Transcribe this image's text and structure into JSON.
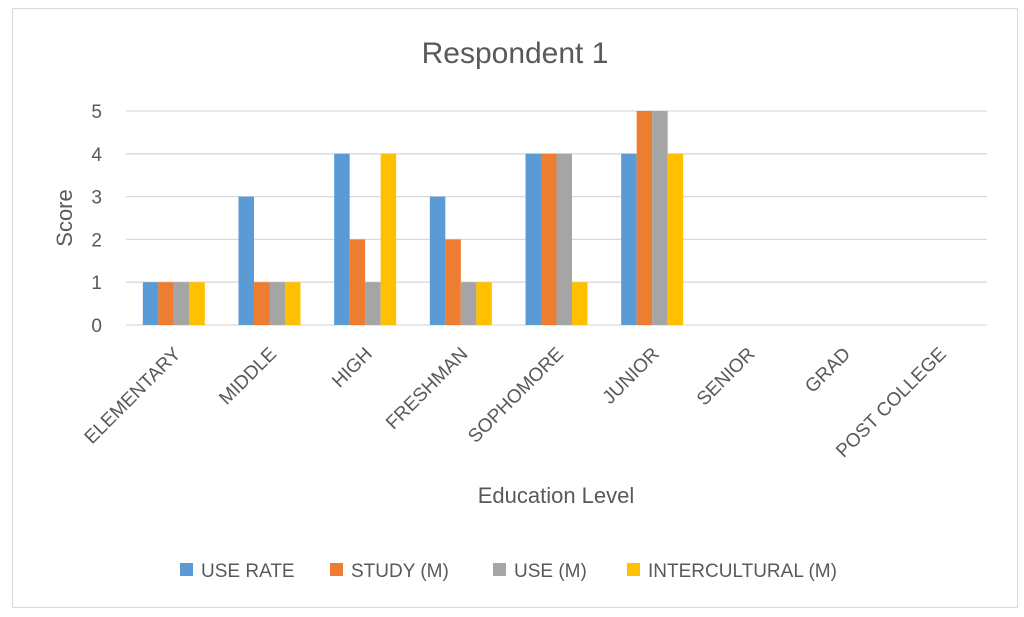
{
  "chart_data": {
    "type": "bar",
    "title": "Respondent 1",
    "xlabel": "Education Level",
    "ylabel": "Score",
    "ylim": [
      0,
      5
    ],
    "yticks": [
      "0",
      "1",
      "2",
      "3",
      "4",
      "5"
    ],
    "grid": true,
    "legend_position": "bottom",
    "categories": [
      "ELEMENTARY",
      "MIDDLE",
      "HIGH",
      "FRESHMAN",
      "SOPHOMORE",
      "JUNIOR",
      "SENIOR",
      "GRAD",
      "POST COLLEGE"
    ],
    "series": [
      {
        "name": "USE RATE",
        "color": "#5b9bd5",
        "values": [
          1,
          3,
          4,
          3,
          4,
          4,
          null,
          null,
          null
        ]
      },
      {
        "name": "STUDY (M)",
        "color": "#ed7d31",
        "values": [
          1,
          1,
          2,
          2,
          4,
          5,
          null,
          null,
          null
        ]
      },
      {
        "name": "USE (M)",
        "color": "#a5a5a5",
        "values": [
          1,
          1,
          1,
          1,
          4,
          5,
          null,
          null,
          null
        ]
      },
      {
        "name": "INTERCULTURAL (M)",
        "color": "#ffc000",
        "values": [
          1,
          1,
          4,
          1,
          1,
          4,
          null,
          null,
          null
        ]
      }
    ]
  }
}
